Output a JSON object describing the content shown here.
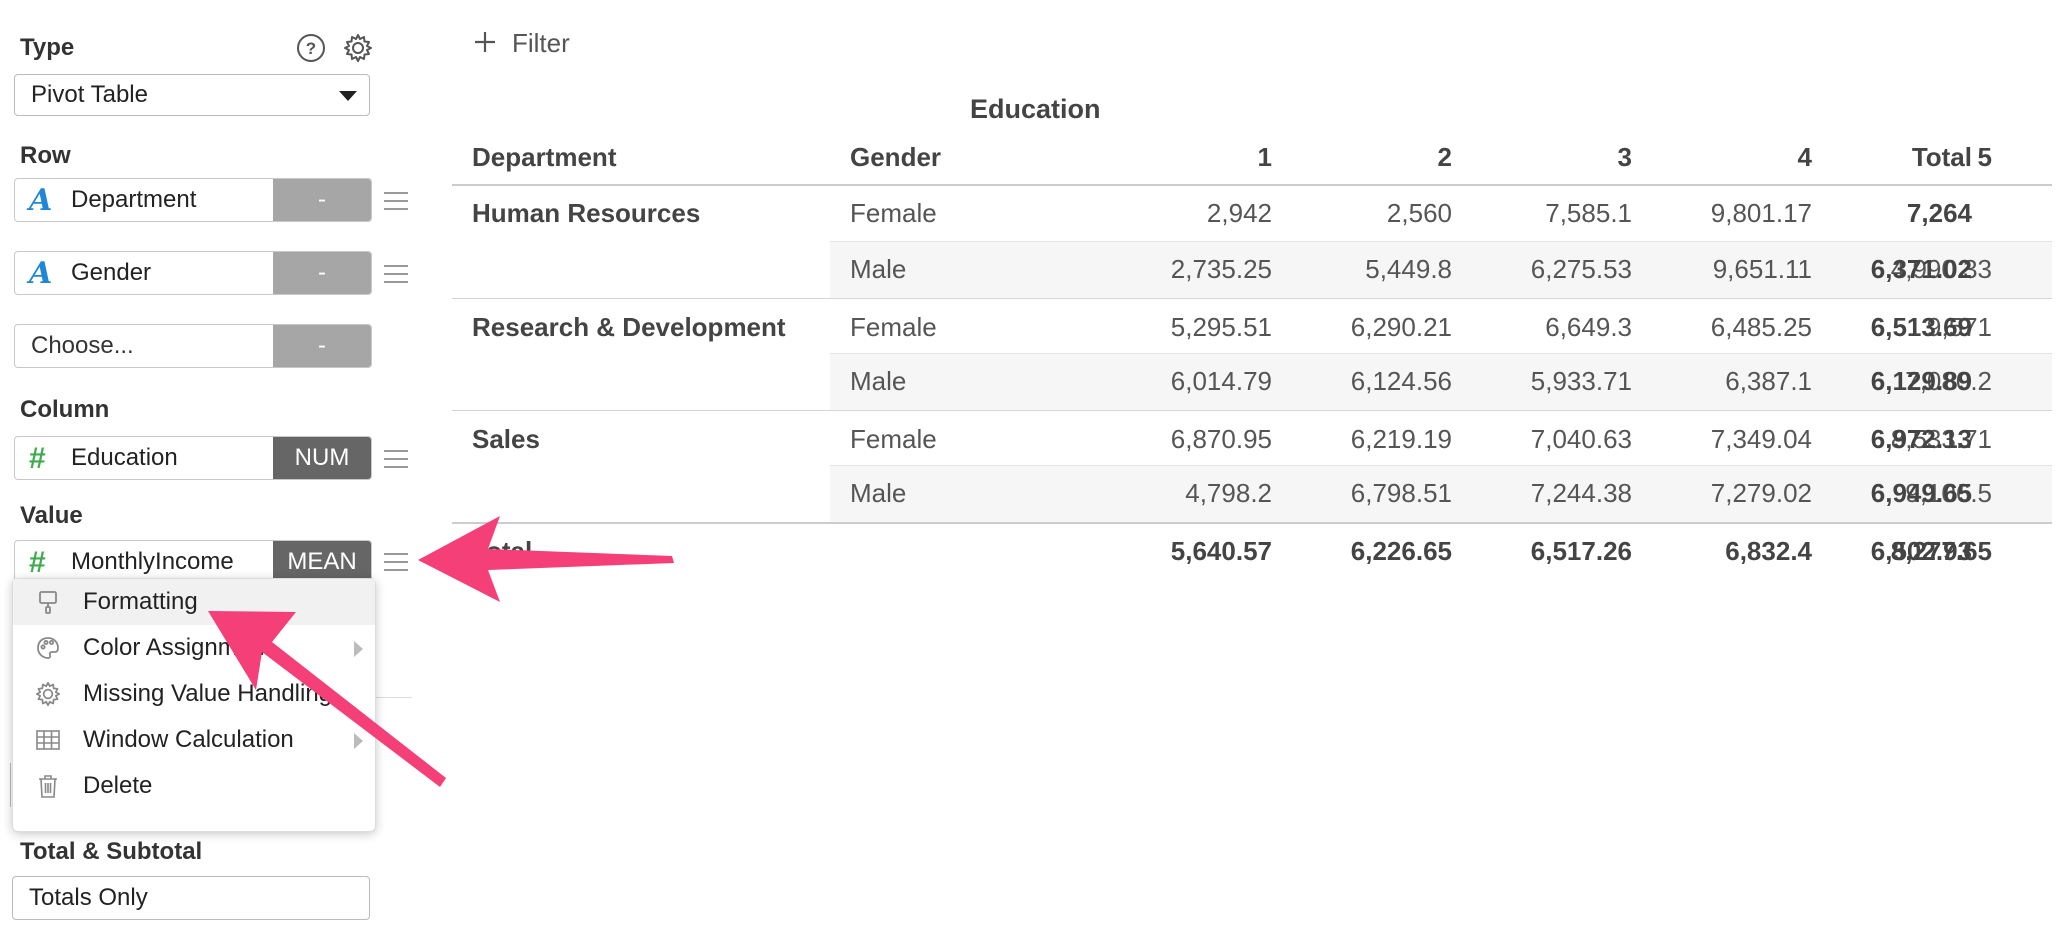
{
  "panel": {
    "type_label": "Type",
    "type_value": "Pivot Table",
    "row_label": "Row",
    "column_label": "Column",
    "value_label": "Value",
    "totals_label": "Total & Subtotal",
    "totals_value": "Totals Only",
    "rows": [
      {
        "type_icon": "A",
        "name": "Department",
        "agg": "-"
      },
      {
        "type_icon": "A",
        "name": "Gender",
        "agg": "-"
      },
      {
        "type_icon": "",
        "name": "Choose...",
        "agg": "-"
      }
    ],
    "column": {
      "type_icon": "#",
      "name": "Education",
      "agg": "NUM"
    },
    "value": {
      "type_icon": "#",
      "name": "MonthlyIncome",
      "agg": "MEAN"
    }
  },
  "menu": {
    "items": [
      {
        "label": "Formatting",
        "icon": "paint-roller-icon"
      },
      {
        "label": "Color Assignment",
        "icon": "palette-icon"
      },
      {
        "label": "Missing Value Handling",
        "icon": "gear-icon"
      },
      {
        "label": "Window Calculation",
        "icon": "table-grid-icon"
      },
      {
        "label": "Delete",
        "icon": "trash-icon"
      }
    ]
  },
  "filter": {
    "label": "Filter"
  },
  "table": {
    "column_group": "Education",
    "headers": [
      "Department",
      "Gender",
      "1",
      "2",
      "3",
      "4",
      "5",
      "Total"
    ],
    "rows": [
      {
        "dept": "Human Resources",
        "gender": "Female",
        "values": [
          "2,942",
          "2,560",
          "7,585.1",
          "9,801.17",
          "",
          "7,264"
        ]
      },
      {
        "dept": "",
        "gender": "Male",
        "values": [
          "2,735.25",
          "5,449.8",
          "6,275.53",
          "9,651.11",
          "4,990.33",
          "6,371.02"
        ]
      },
      {
        "dept": "Research & Development",
        "gender": "Female",
        "values": [
          "5,295.51",
          "6,290.21",
          "6,649.3",
          "6,485.25",
          "9,571",
          "6,513.69"
        ]
      },
      {
        "dept": "",
        "gender": "Male",
        "values": [
          "6,014.79",
          "6,124.56",
          "5,933.71",
          "6,387.1",
          "7,080.2",
          "6,129.89"
        ]
      },
      {
        "dept": "Sales",
        "gender": "Female",
        "values": [
          "6,870.95",
          "6,219.19",
          "7,040.63",
          "7,349.04",
          "8,533.71",
          "6,972.13"
        ]
      },
      {
        "dept": "",
        "gender": "Male",
        "values": [
          "4,798.2",
          "6,798.51",
          "7,244.38",
          "7,279.02",
          "9,106.5",
          "6,949.65"
        ]
      }
    ],
    "total_label": "Total",
    "totals": [
      "5,640.57",
      "6,226.65",
      "6,517.26",
      "6,832.4",
      "8,277.65",
      "6,502.93"
    ]
  },
  "colors": {
    "annotation_arrow": "#f43f79",
    "alpha_icon": "#1f87d6",
    "num_icon": "#3eab4f",
    "agg_light": "#a6a6a6",
    "agg_dark": "#666666"
  }
}
